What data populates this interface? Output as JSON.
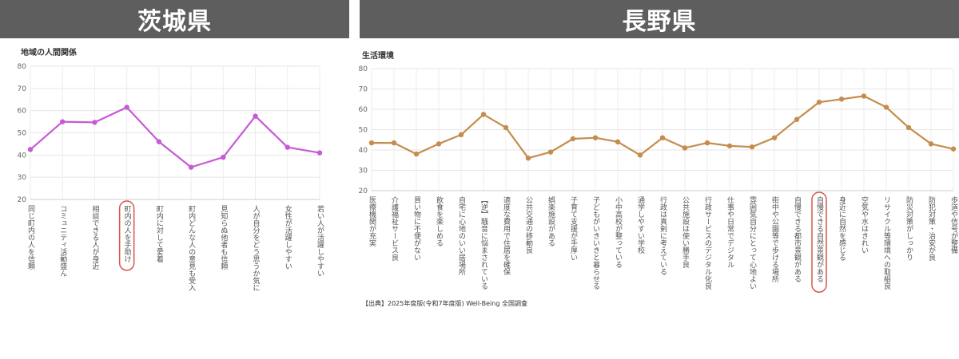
{
  "headers": {
    "left": "茨城県",
    "right": "長野県"
  },
  "chart_data": [
    {
      "type": "line",
      "title": "地域の人間関係",
      "color": "#c75ad6",
      "ylim": [
        20,
        80
      ],
      "yticks": [
        20,
        30,
        40,
        50,
        60,
        70,
        80
      ],
      "grid": true,
      "highlight_index": 3,
      "highlight_color": "#d9534f",
      "categories": [
        "同じ町内の人を信頼",
        "コミュニティ活動盛ん",
        "相談できる人が身近",
        "町内の人を手助け",
        "町内に対して愛着",
        "町内どんな人の意見も受入",
        "見知らぬ他者も信頼",
        "人が自分をどう思うか気に",
        "女性が活躍しやすい",
        "若い人が活躍しやすい"
      ],
      "values": [
        42.5,
        55,
        54.7,
        61.5,
        46,
        34.5,
        39,
        57.5,
        43.5,
        41
      ]
    },
    {
      "type": "line",
      "title": "生活環境",
      "color": "#c48d4e",
      "ylim": [
        20,
        80
      ],
      "yticks": [
        20,
        30,
        40,
        50,
        60,
        70,
        80
      ],
      "grid": true,
      "highlight_index": 20,
      "highlight_color": "#d9534f",
      "categories": [
        "医療機関が充実",
        "介護福祉サービス良",
        "買い物に不便がない",
        "飲食を楽しめる",
        "自宅に心地のいい居場所",
        "【逆】騒音に悩まされている",
        "適度な費用で住居を確保",
        "公共交通の移動良",
        "娯楽施設がある",
        "子育て支援が手厚い",
        "子どもがいきいきと暮らせる",
        "小中高校が整っている",
        "通学しやすい学校",
        "行政は真剣に考えている",
        "公共施設は使い勝手良",
        "行政サービスのデジタル化良",
        "仕事や日常でデジタル",
        "雰囲気自分にとって心地よい",
        "街中や公園等で歩ける場所",
        "自慢できる都市景観がある",
        "自慢できる自然景観がある",
        "身近に自然を感じる",
        "空気や水はきれい",
        "リサイクル等環境への取組良",
        "防災対策がしっかり",
        "防犯対策・治安が良",
        "歩道や信号が整備"
      ],
      "values": [
        43.5,
        43.5,
        38,
        43,
        47.5,
        57.5,
        51,
        36,
        39,
        45.5,
        46,
        44,
        37.5,
        46,
        41,
        43.5,
        42,
        41.5,
        46,
        55,
        63.5,
        65,
        66.5,
        61,
        51,
        43,
        40.5
      ]
    }
  ],
  "source": "【出典】2025年度版(令和7年度版) Well-Being 全国調査"
}
